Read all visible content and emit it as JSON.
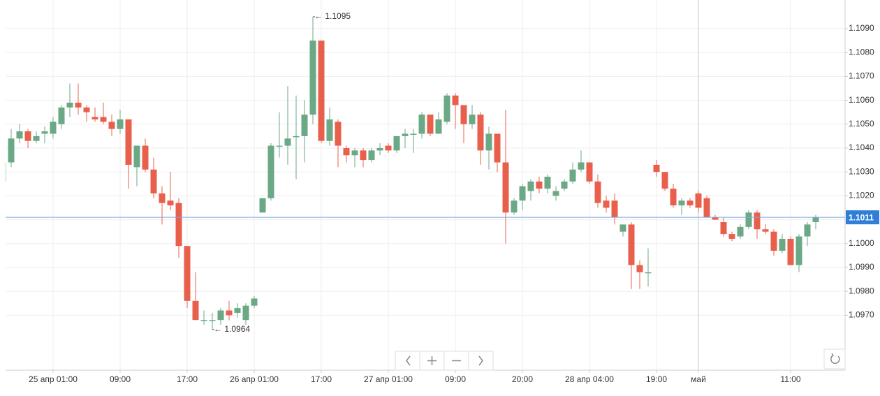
{
  "chart_data": {
    "type": "candlestick",
    "categories": [
      null,
      null,
      null,
      null,
      null,
      null,
      "25 апр 01:00",
      null,
      null,
      null,
      null,
      null,
      null,
      null,
      "09:00",
      null,
      null,
      null,
      null,
      null,
      null,
      null,
      "17:00",
      null,
      null,
      null,
      null,
      null,
      null,
      null,
      "26 апр 01:00",
      null,
      null,
      null,
      null,
      null,
      null,
      null,
      "17:00",
      null,
      null,
      null,
      null,
      null,
      null,
      null,
      "27 апр 01:00",
      null,
      null,
      null,
      null,
      null,
      null,
      null,
      "09:00",
      null,
      null,
      null,
      null,
      null,
      null,
      null,
      "20:00",
      null,
      null,
      null,
      null,
      null,
      null,
      null,
      "28 апр 04:00",
      null,
      null,
      null,
      null,
      null,
      null,
      null,
      "19:00",
      null,
      null,
      null,
      null,
      "май",
      null,
      null,
      null,
      null,
      null,
      null,
      null,
      null,
      null,
      null,
      "11:00",
      null,
      null,
      null
    ],
    "open": [
      1.1026,
      1.1034,
      1.1044,
      1.1047,
      1.1043,
      1.1046,
      1.1046,
      1.105,
      1.1057,
      1.1059,
      1.1057,
      1.1053,
      1.1053,
      1.1051,
      1.1048,
      1.1052,
      1.1032,
      1.1041,
      1.1031,
      1.1021,
      1.1018,
      1.1017,
      1.0999,
      1.0976,
      1.0968,
      1.0968,
      1.0968,
      1.0972,
      1.0971,
      1.0968,
      1.0974,
      1.1013,
      1.1019,
      1.1041,
      1.1041,
      1.1045,
      1.1045,
      1.1054,
      1.1085,
      1.1043,
      1.1051,
      1.104,
      1.1037,
      1.1039,
      1.1035,
      1.1039,
      1.1041,
      1.1039,
      1.1045,
      1.1046,
      1.1046,
      1.1054,
      1.1046,
      1.1051,
      1.1062,
      1.1058,
      1.105,
      1.1054,
      1.1039,
      1.1046,
      1.1034,
      1.1013,
      1.1018,
      1.1022,
      1.1026,
      1.1023,
      1.102,
      1.1023,
      1.1026,
      1.1031,
      1.1034,
      1.1026,
      1.1018,
      1.1018,
      1.1005,
      1.1008,
      1.0991,
      1.0988,
      1.1033,
      1.103,
      1.1023,
      1.1016,
      1.1018,
      1.1021,
      1.1019,
      1.1011,
      1.1009,
      1.1004,
      1.1003,
      1.1007,
      1.1013,
      1.1006,
      1.1005,
      1.0997,
      1.1002,
      1.0991,
      1.1003,
      1.1009
    ],
    "high": [
      1.1036,
      1.1048,
      1.105,
      1.1048,
      1.1047,
      1.1049,
      1.1053,
      1.1058,
      1.1067,
      1.1067,
      1.1058,
      1.1057,
      1.1059,
      1.1054,
      1.1056,
      1.1052,
      1.1041,
      1.1044,
      1.1036,
      1.1024,
      1.103,
      1.1019,
      1.0999,
      1.0988,
      1.0972,
      1.0971,
      1.0973,
      1.0976,
      1.0975,
      1.0975,
      1.0978,
      1.1019,
      1.1042,
      1.1055,
      1.1066,
      1.1062,
      1.106,
      1.1095,
      1.1085,
      1.1057,
      1.1052,
      1.1041,
      1.104,
      1.104,
      1.104,
      1.1042,
      1.1042,
      1.1045,
      1.1048,
      1.1048,
      1.1055,
      1.1054,
      1.1055,
      1.1063,
      1.1063,
      1.1058,
      1.1058,
      1.1055,
      1.1049,
      1.1046,
      1.1056,
      1.1019,
      1.1025,
      1.1027,
      1.1028,
      1.1029,
      1.1024,
      1.1027,
      1.1034,
      1.1039,
      1.1034,
      1.1029,
      1.102,
      1.1021,
      1.1008,
      1.1009,
      1.0993,
      1.0998,
      1.1035,
      1.103,
      1.1025,
      1.1019,
      1.1019,
      1.1022,
      1.102,
      1.1012,
      1.1011,
      1.1005,
      1.1008,
      1.1014,
      1.1014,
      1.1008,
      1.1006,
      1.1004,
      1.1003,
      1.1004,
      1.1009,
      1.1012
    ],
    "low": [
      1.1024,
      1.1032,
      1.1042,
      1.104,
      1.1042,
      1.1042,
      1.1044,
      1.1048,
      1.1053,
      1.1054,
      1.1051,
      1.1051,
      1.105,
      1.1045,
      1.1046,
      1.1023,
      1.1024,
      1.103,
      1.1019,
      1.1008,
      1.1014,
      1.0994,
      1.0973,
      1.0968,
      1.0966,
      1.0964,
      1.0966,
      1.0968,
      1.0969,
      1.0966,
      1.0973,
      1.1013,
      1.1018,
      1.1036,
      1.1033,
      1.1027,
      1.1034,
      1.105,
      1.1042,
      1.1041,
      1.1032,
      1.1034,
      1.1032,
      1.1032,
      1.1034,
      1.1037,
      1.1038,
      1.1038,
      1.104,
      1.1038,
      1.1044,
      1.1045,
      1.1046,
      1.105,
      1.1048,
      1.1042,
      1.1048,
      1.1033,
      1.1031,
      1.103,
      1.1,
      1.1012,
      1.1014,
      1.1018,
      1.1021,
      1.1021,
      1.1018,
      1.1022,
      1.1025,
      1.103,
      1.1025,
      1.1015,
      1.1013,
      1.1008,
      1.1003,
      1.0981,
      1.0981,
      1.0982,
      1.1028,
      1.1022,
      1.1015,
      1.1012,
      1.1015,
      1.1013,
      1.1011,
      1.101,
      1.1003,
      1.1001,
      1.1002,
      1.1006,
      1.1002,
      1.1004,
      1.0995,
      1.0996,
      1.0991,
      1.0988,
      1.0999,
      1.1006
    ],
    "close": [
      1.1034,
      1.1044,
      1.1047,
      1.1043,
      1.1045,
      1.1047,
      1.1051,
      1.1057,
      1.1059,
      1.1057,
      1.1055,
      1.1052,
      1.1051,
      1.1048,
      1.1052,
      1.1033,
      1.1041,
      1.1031,
      1.1021,
      1.1017,
      1.1016,
      1.0999,
      1.0976,
      1.0968,
      1.0968,
      1.0968,
      1.0972,
      1.097,
      1.0973,
      1.0974,
      1.0977,
      1.1019,
      1.1041,
      1.1041,
      1.1044,
      1.1045,
      1.1054,
      1.1085,
      1.1043,
      1.1052,
      1.1041,
      1.1037,
      1.1039,
      1.1035,
      1.1039,
      1.104,
      1.1039,
      1.1045,
      1.1046,
      1.1046,
      1.1054,
      1.1046,
      1.1052,
      1.1062,
      1.1058,
      1.105,
      1.1054,
      1.1039,
      1.1046,
      1.1034,
      1.1013,
      1.1018,
      1.1024,
      1.1026,
      1.1023,
      1.1028,
      1.1022,
      1.1026,
      1.1031,
      1.1034,
      1.1026,
      1.1017,
      1.1015,
      1.1011,
      1.1008,
      1.0991,
      1.0988,
      1.0988,
      1.103,
      1.1023,
      1.1016,
      1.1018,
      1.1016,
      1.1015,
      1.1011,
      1.101,
      1.1004,
      1.1002,
      1.1007,
      1.1013,
      1.1006,
      1.1005,
      1.0997,
      1.1002,
      1.0991,
      1.1003,
      1.1008,
      1.1011
    ],
    "up_color": "#6aa886",
    "down_color": "#e8604c",
    "ylim": [
      1.0947,
      1.1102
    ],
    "yticks": [
      {
        "value": 1.097,
        "label": "1.0970"
      },
      {
        "value": 1.098,
        "label": "1.0980"
      },
      {
        "value": 1.099,
        "label": "1.0990"
      },
      {
        "value": 1.1,
        "label": "1.1000"
      },
      {
        "value": 1.101,
        "label": "1.1010"
      },
      {
        "value": 1.102,
        "label": "1.1020"
      },
      {
        "value": 1.103,
        "label": "1.1030"
      },
      {
        "value": 1.104,
        "label": "1.1040"
      },
      {
        "value": 1.105,
        "label": "1.1050"
      },
      {
        "value": 1.106,
        "label": "1.1060"
      },
      {
        "value": 1.107,
        "label": "1.1070"
      },
      {
        "value": 1.108,
        "label": "1.1080"
      },
      {
        "value": 1.109,
        "label": "1.1090"
      }
    ],
    "grid": true,
    "current_price": {
      "value": 1.1011,
      "label": "1.1011"
    },
    "annotations": [
      {
        "value": 1.1095,
        "label": "← 1.1095",
        "at": "high"
      },
      {
        "value": 1.0964,
        "label": "← 1.0964",
        "at": "low"
      }
    ]
  }
}
